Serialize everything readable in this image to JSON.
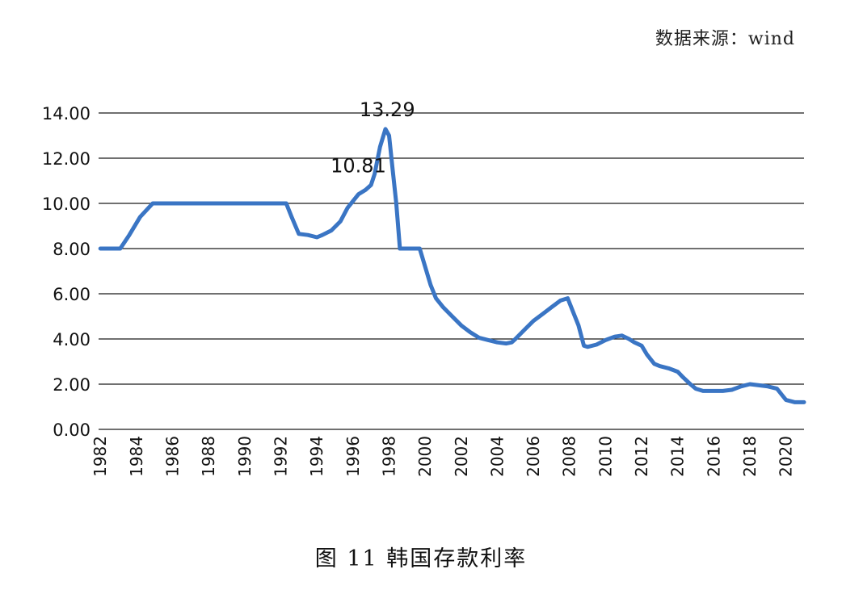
{
  "source_label": "数据来源：wind",
  "caption": "图 11    韩国存款利率",
  "chart_data": {
    "type": "line",
    "title": "",
    "xlabel": "",
    "ylabel": "",
    "ylim": [
      0,
      14
    ],
    "yticks": [
      "0.00",
      "2.00",
      "4.00",
      "6.00",
      "8.00",
      "10.00",
      "12.00",
      "14.00"
    ],
    "xticks": [
      "1982",
      "1984",
      "1986",
      "1988",
      "1990",
      "1992",
      "1994",
      "1996",
      "1998",
      "2000",
      "2002",
      "2004",
      "2006",
      "2008",
      "2010",
      "2012",
      "2014",
      "2016",
      "2018",
      "2020"
    ],
    "xlim": [
      1981.9,
      2021.0
    ],
    "grid": true,
    "series_color": "#3a75c4",
    "annotations": [
      {
        "text": "10.81",
        "x": 1996.3,
        "y": 10.81
      },
      {
        "text": "13.29",
        "x": 1997.9,
        "y": 13.29
      }
    ],
    "series": [
      {
        "x": [
          1982.0,
          1983.1,
          1983.6,
          1984.2,
          1984.9,
          1988.0,
          1991.0,
          1992.3,
          1992.6,
          1993.0,
          1993.5,
          1994.0,
          1994.3,
          1994.8,
          1995.3,
          1995.7,
          1996.0,
          1996.3,
          1996.7,
          1997.0,
          1997.2,
          1997.5,
          1997.8,
          1998.0,
          1998.2,
          1998.4,
          1998.6,
          1998.8,
          1999.0,
          1999.3,
          1999.7,
          2000.0,
          2000.3,
          2000.6,
          2001.0,
          2001.5,
          2002.0,
          2002.5,
          2003.0,
          2003.5,
          2004.0,
          2004.5,
          2004.8,
          2005.0,
          2005.5,
          2006.0,
          2006.5,
          2007.0,
          2007.5,
          2007.9,
          2008.2,
          2008.5,
          2008.8,
          2009.0,
          2009.5,
          2010.0,
          2010.5,
          2010.9,
          2011.3,
          2011.6,
          2012.0,
          2012.3,
          2012.7,
          2013.0,
          2013.5,
          2014.0,
          2014.3,
          2014.7,
          2015.0,
          2015.4,
          2016.0,
          2016.5,
          2017.0,
          2017.5,
          2018.0,
          2018.5,
          2019.0,
          2019.5,
          2019.8,
          2020.0,
          2020.5,
          2021.0
        ],
        "y": [
          8.0,
          8.0,
          8.6,
          9.4,
          10.0,
          10.0,
          10.0,
          10.0,
          9.4,
          8.65,
          8.6,
          8.5,
          8.6,
          8.8,
          9.2,
          9.8,
          10.1,
          10.4,
          10.6,
          10.81,
          11.3,
          12.5,
          13.29,
          13.0,
          11.5,
          10.0,
          8.0,
          8.0,
          8.0,
          8.0,
          8.0,
          7.2,
          6.4,
          5.8,
          5.4,
          5.0,
          4.6,
          4.3,
          4.05,
          3.95,
          3.85,
          3.8,
          3.85,
          4.0,
          4.4,
          4.8,
          5.1,
          5.4,
          5.7,
          5.8,
          5.2,
          4.6,
          3.7,
          3.65,
          3.75,
          3.95,
          4.1,
          4.15,
          4.0,
          3.85,
          3.7,
          3.3,
          2.9,
          2.8,
          2.7,
          2.55,
          2.3,
          2.0,
          1.8,
          1.7,
          1.7,
          1.7,
          1.75,
          1.9,
          2.0,
          1.95,
          1.9,
          1.8,
          1.5,
          1.3,
          1.2,
          1.2
        ]
      }
    ]
  }
}
